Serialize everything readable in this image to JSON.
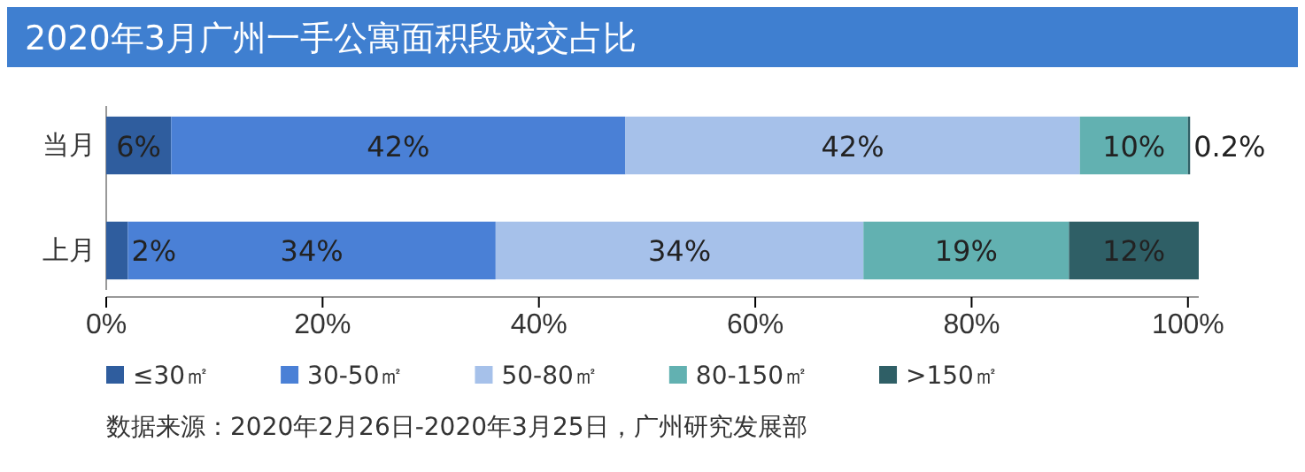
{
  "chart_data": {
    "type": "bar",
    "orientation": "horizontal",
    "stacked": true,
    "title": "2020年3月广州一手公寓面积段成交占比",
    "categories": [
      "当月",
      "上月"
    ],
    "series": [
      {
        "name": "≤30㎡",
        "color": "#2f5d9e",
        "values": [
          6,
          2
        ],
        "value_labels": [
          "6%",
          "2%"
        ]
      },
      {
        "name": "30-50㎡",
        "color": "#4a80d6",
        "values": [
          42,
          34
        ],
        "value_labels": [
          "42%",
          "34%"
        ]
      },
      {
        "name": "50-80㎡",
        "color": "#a6c1ea",
        "values": [
          42,
          34
        ],
        "value_labels": [
          "42%",
          "34%"
        ]
      },
      {
        "name": "80-150㎡",
        "color": "#62b1b1",
        "values": [
          10,
          19
        ],
        "value_labels": [
          "10%",
          "19%"
        ]
      },
      {
        "name": ">150㎡",
        "color": "#2f5f66",
        "values": [
          0.2,
          12
        ],
        "value_labels": [
          "0.2%",
          "12%"
        ]
      }
    ],
    "xlim": [
      0,
      101
    ],
    "xticks": [
      {
        "value": 0,
        "label": "0%"
      },
      {
        "value": 20,
        "label": "20%"
      },
      {
        "value": 40,
        "label": "40%"
      },
      {
        "value": 60,
        "label": "60%"
      },
      {
        "value": 80,
        "label": "80%"
      },
      {
        "value": 100,
        "label": "100%"
      }
    ],
    "legend": "bottom",
    "grid": false,
    "annotations": [
      "数据来源：2020年2月26日-2020年3月25日，广州研究发展部"
    ]
  }
}
